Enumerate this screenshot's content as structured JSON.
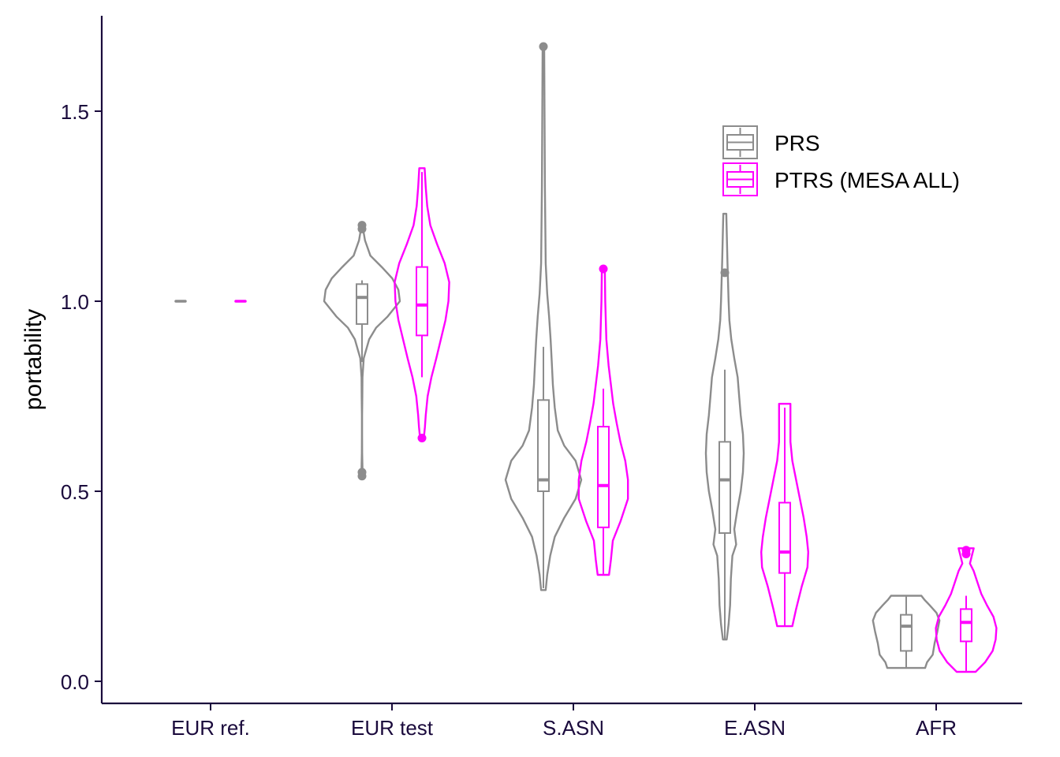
{
  "chart_data": {
    "type": "violin",
    "xlabel": "",
    "ylabel": "portability",
    "ylim": [
      -0.05,
      1.75
    ],
    "yticks": [
      0.0,
      0.5,
      1.0,
      1.5
    ],
    "ytick_labels": [
      "0.0",
      "0.5",
      "1.0",
      "1.5"
    ],
    "categories": [
      "EUR ref.",
      "EUR test",
      "S.ASN",
      "E.ASN",
      "AFR"
    ],
    "legend_position": "top-right",
    "colors": {
      "PRS": "#8c8c8c",
      "PTRS (MESA ALL)": "#ff00ff",
      "axis": "#1a0a3c"
    },
    "series": [
      {
        "name": "PRS",
        "groups": [
          {
            "category": "EUR ref.",
            "range": [
              1.0,
              1.0
            ],
            "shape": [],
            "box": {
              "q1": 1.0,
              "median": 1.0,
              "q3": 1.0,
              "whisker_low": 1.0,
              "whisker_high": 1.0
            },
            "outliers": []
          },
          {
            "category": "EUR test",
            "range": [
              0.54,
              1.2
            ],
            "shape": [
              [
                0.54,
                0.01
              ],
              [
                0.56,
                0.012
              ],
              [
                0.6,
                0.005
              ],
              [
                0.65,
                0.003
              ],
              [
                0.7,
                0.003
              ],
              [
                0.75,
                0.008
              ],
              [
                0.8,
                0.012
              ],
              [
                0.85,
                0.045
              ],
              [
                0.9,
                0.19
              ],
              [
                0.93,
                0.37
              ],
              [
                0.96,
                0.68
              ],
              [
                1.0,
                1.0
              ],
              [
                1.03,
                0.96
              ],
              [
                1.06,
                0.8
              ],
              [
                1.09,
                0.52
              ],
              [
                1.12,
                0.22
              ],
              [
                1.16,
                0.08
              ],
              [
                1.2,
                0.01
              ]
            ],
            "box": {
              "q1": 0.94,
              "median": 1.01,
              "q3": 1.045,
              "whisker_low": 0.84,
              "whisker_high": 1.055
            },
            "outliers": [
              0.54,
              0.55,
              1.19,
              1.2
            ]
          },
          {
            "category": "S.ASN",
            "range": [
              0.24,
              1.67
            ],
            "shape": [
              [
                0.24,
                0.06
              ],
              [
                0.28,
                0.1
              ],
              [
                0.33,
                0.18
              ],
              [
                0.38,
                0.3
              ],
              [
                0.43,
                0.55
              ],
              [
                0.48,
                0.85
              ],
              [
                0.53,
                1.0
              ],
              [
                0.58,
                0.85
              ],
              [
                0.62,
                0.55
              ],
              [
                0.66,
                0.38
              ],
              [
                0.72,
                0.3
              ],
              [
                0.78,
                0.25
              ],
              [
                0.84,
                0.22
              ],
              [
                0.9,
                0.19
              ],
              [
                0.96,
                0.15
              ],
              [
                1.02,
                0.1
              ],
              [
                1.1,
                0.06
              ],
              [
                1.3,
                0.04
              ],
              [
                1.5,
                0.03
              ],
              [
                1.67,
                0.02
              ]
            ],
            "box": {
              "q1": 0.5,
              "median": 0.53,
              "q3": 0.74,
              "whisker_low": 0.245,
              "whisker_high": 0.88
            },
            "outliers": [
              1.67
            ]
          },
          {
            "category": "E.ASN",
            "range": [
              0.11,
              1.23
            ],
            "shape": [
              [
                0.11,
                0.05
              ],
              [
                0.15,
                0.1
              ],
              [
                0.2,
                0.14
              ],
              [
                0.27,
                0.16
              ],
              [
                0.33,
                0.2
              ],
              [
                0.36,
                0.3
              ],
              [
                0.4,
                0.25
              ],
              [
                0.45,
                0.33
              ],
              [
                0.5,
                0.42
              ],
              [
                0.55,
                0.48
              ],
              [
                0.6,
                0.5
              ],
              [
                0.65,
                0.48
              ],
              [
                0.7,
                0.42
              ],
              [
                0.75,
                0.38
              ],
              [
                0.8,
                0.34
              ],
              [
                0.85,
                0.25
              ],
              [
                0.9,
                0.17
              ],
              [
                0.95,
                0.12
              ],
              [
                1.0,
                0.1
              ],
              [
                1.1,
                0.07
              ],
              [
                1.23,
                0.04
              ]
            ],
            "box": {
              "q1": 0.39,
              "median": 0.53,
              "q3": 0.63,
              "whisker_low": 0.11,
              "whisker_high": 0.82
            },
            "outliers": [
              1.075
            ]
          },
          {
            "category": "AFR",
            "range": [
              0.035,
              0.225
            ],
            "shape": [
              [
                0.035,
                0.5
              ],
              [
                0.05,
                0.55
              ],
              [
                0.07,
                0.7
              ],
              [
                0.1,
                0.75
              ],
              [
                0.13,
                0.82
              ],
              [
                0.16,
                0.88
              ],
              [
                0.18,
                0.8
              ],
              [
                0.2,
                0.62
              ],
              [
                0.215,
                0.48
              ],
              [
                0.225,
                0.4
              ]
            ],
            "box": {
              "q1": 0.08,
              "median": 0.145,
              "q3": 0.175,
              "whisker_low": 0.035,
              "whisker_high": 0.225
            },
            "outliers": []
          }
        ]
      },
      {
        "name": "PTRS (MESA ALL)",
        "groups": [
          {
            "category": "EUR ref.",
            "range": [
              1.0,
              1.0
            ],
            "shape": [],
            "box": {
              "q1": 1.0,
              "median": 1.0,
              "q3": 1.0,
              "whisker_low": 1.0,
              "whisker_high": 1.0
            },
            "outliers": []
          },
          {
            "category": "EUR test",
            "range": [
              0.64,
              1.35
            ],
            "shape": [
              [
                0.64,
                0.05
              ],
              [
                0.67,
                0.08
              ],
              [
                0.7,
                0.1
              ],
              [
                0.75,
                0.15
              ],
              [
                0.8,
                0.25
              ],
              [
                0.85,
                0.38
              ],
              [
                0.9,
                0.5
              ],
              [
                0.95,
                0.62
              ],
              [
                1.0,
                0.7
              ],
              [
                1.05,
                0.72
              ],
              [
                1.1,
                0.6
              ],
              [
                1.15,
                0.4
              ],
              [
                1.2,
                0.22
              ],
              [
                1.25,
                0.14
              ],
              [
                1.3,
                0.1
              ],
              [
                1.35,
                0.07
              ]
            ],
            "box": {
              "q1": 0.91,
              "median": 0.99,
              "q3": 1.09,
              "whisker_low": 0.8,
              "whisker_high": 1.34
            },
            "outliers": [
              0.64
            ]
          },
          {
            "category": "S.ASN",
            "range": [
              0.28,
              1.08
            ],
            "shape": [
              [
                0.28,
                0.15
              ],
              [
                0.32,
                0.2
              ],
              [
                0.37,
                0.25
              ],
              [
                0.42,
                0.45
              ],
              [
                0.48,
                0.65
              ],
              [
                0.53,
                0.65
              ],
              [
                0.58,
                0.58
              ],
              [
                0.63,
                0.45
              ],
              [
                0.68,
                0.35
              ],
              [
                0.73,
                0.26
              ],
              [
                0.78,
                0.2
              ],
              [
                0.83,
                0.14
              ],
              [
                0.9,
                0.08
              ],
              [
                1.0,
                0.05
              ],
              [
                1.08,
                0.04
              ]
            ],
            "box": {
              "q1": 0.405,
              "median": 0.515,
              "q3": 0.67,
              "whisker_low": 0.28,
              "whisker_high": 0.77
            },
            "outliers": [
              1.085
            ]
          },
          {
            "category": "E.ASN",
            "range": [
              0.145,
              0.73
            ],
            "shape": [
              [
                0.145,
                0.2
              ],
              [
                0.19,
                0.3
              ],
              [
                0.25,
                0.45
              ],
              [
                0.3,
                0.6
              ],
              [
                0.34,
                0.62
              ],
              [
                0.38,
                0.58
              ],
              [
                0.43,
                0.5
              ],
              [
                0.48,
                0.4
              ],
              [
                0.53,
                0.3
              ],
              [
                0.58,
                0.2
              ],
              [
                0.63,
                0.15
              ],
              [
                0.68,
                0.15
              ],
              [
                0.73,
                0.15
              ]
            ],
            "box": {
              "q1": 0.285,
              "median": 0.34,
              "q3": 0.47,
              "whisker_low": 0.145,
              "whisker_high": 0.72
            },
            "outliers": []
          },
          {
            "category": "AFR",
            "range": [
              0.025,
              0.35
            ],
            "shape": [
              [
                0.025,
                0.25
              ],
              [
                0.05,
                0.5
              ],
              [
                0.08,
                0.7
              ],
              [
                0.11,
                0.78
              ],
              [
                0.14,
                0.8
              ],
              [
                0.17,
                0.72
              ],
              [
                0.2,
                0.55
              ],
              [
                0.23,
                0.4
              ],
              [
                0.26,
                0.3
              ],
              [
                0.29,
                0.2
              ],
              [
                0.31,
                0.1
              ],
              [
                0.33,
                0.15
              ],
              [
                0.35,
                0.2
              ]
            ],
            "box": {
              "q1": 0.105,
              "median": 0.155,
              "q3": 0.19,
              "whisker_low": 0.025,
              "whisker_high": 0.225
            },
            "outliers": [
              0.335,
              0.345
            ]
          }
        ]
      }
    ]
  }
}
